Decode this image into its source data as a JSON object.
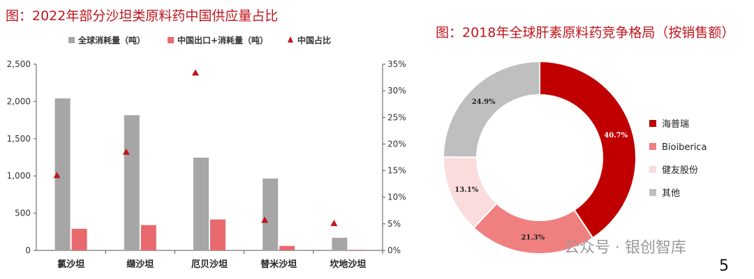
{
  "left_title": "图：2022年部分沙坦类原料药中国供应量占比",
  "right_title": "图：2018年全球肝素原料药竞争格局（按销售额）",
  "watermark": "公众号 · 银创智库",
  "page_number": "5",
  "colors": {
    "gray": "#a6a6a6",
    "pink": "#e8696e",
    "marker": "#c0151b",
    "donut": [
      "#c00000",
      "#f08080",
      "#fadcdc",
      "#bfbfbf"
    ]
  },
  "chart_data": [
    {
      "type": "bar",
      "title": "2022年部分沙坦类原料药中国供应量占比",
      "categories": [
        "氯沙坦",
        "缬沙坦",
        "厄贝沙坦",
        "替米沙坦",
        "坎地沙坦"
      ],
      "series": [
        {
          "name": "全球消耗量（吨）",
          "kind": "bar",
          "axis": "left",
          "values": [
            2040,
            1815,
            1245,
            965,
            170
          ]
        },
        {
          "name": "中国出口+消耗量（吨）",
          "kind": "bar",
          "axis": "left",
          "values": [
            290,
            340,
            415,
            60,
            8
          ]
        },
        {
          "name": "中国占比",
          "kind": "marker",
          "axis": "right",
          "values": [
            14.1,
            18.5,
            33.4,
            5.7,
            5.1
          ]
        }
      ],
      "yleft": {
        "lim": [
          0,
          2500
        ],
        "ticks": [
          0,
          500,
          1000,
          1500,
          2000,
          2500
        ],
        "tick_labels": [
          "0",
          "500",
          "1,000",
          "1,500",
          "2,000",
          "2,500"
        ]
      },
      "yright": {
        "lim": [
          0,
          35
        ],
        "ticks": [
          0,
          5,
          10,
          15,
          20,
          25,
          30,
          35
        ],
        "tick_labels": [
          "0%",
          "5%",
          "10%",
          "15%",
          "20%",
          "25%",
          "30%",
          "35%"
        ]
      },
      "legend_position": "top",
      "grid": false
    },
    {
      "type": "pie",
      "donut": true,
      "title": "2018年全球肝素原料药竞争格局（按销售额）",
      "labels": [
        "海普瑞",
        "Bioiberica",
        "健友股份",
        "其他"
      ],
      "values": [
        40.7,
        21.3,
        13.1,
        24.9
      ],
      "value_labels": [
        "40.7%",
        "21.3%",
        "13.1%",
        "24.9%"
      ],
      "legend_position": "right"
    }
  ]
}
